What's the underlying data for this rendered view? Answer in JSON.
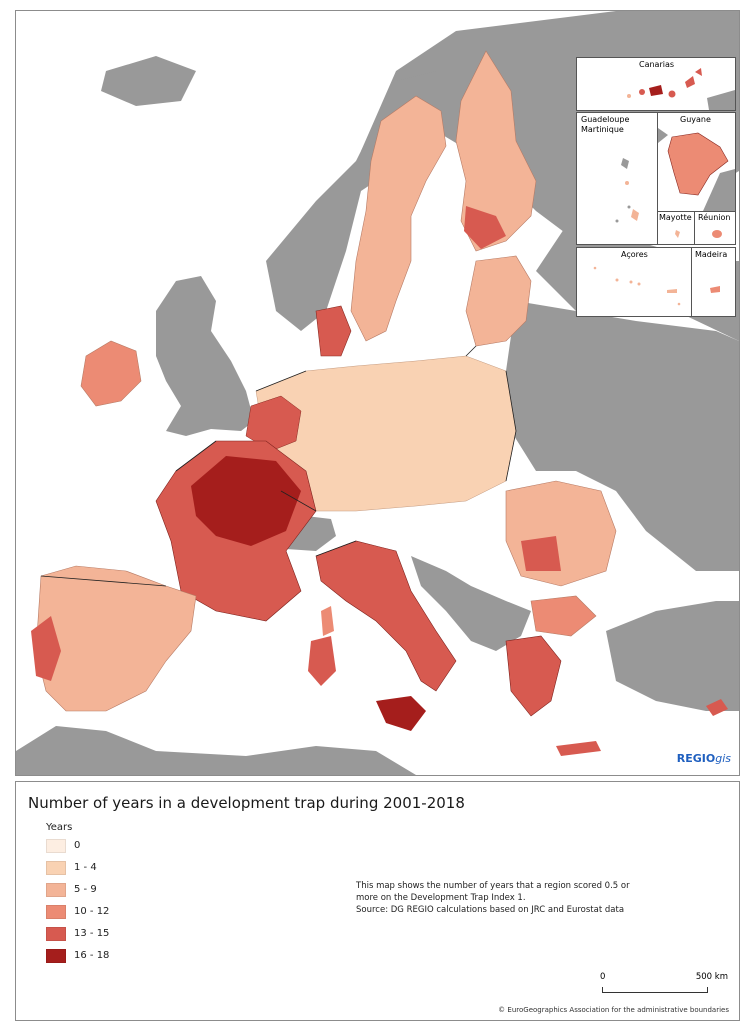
{
  "map": {
    "inset_labels": {
      "canarias": "Canarias",
      "guadeloupe": "Guadeloupe",
      "martinique": "Martinique",
      "guyane": "Guyane",
      "mayotte": "Mayotte",
      "reunion": "Réunion",
      "acores": "Açores",
      "madeira": "Madeira"
    },
    "logo_main": "REGIO",
    "logo_italic": "gis",
    "colors": {
      "sea": "#ffffff",
      "non_eu_land": "#999999",
      "borders": "#333333"
    }
  },
  "legend": {
    "title": "Number of years in a development trap during 2001-2018",
    "heading": "Years",
    "classes": [
      {
        "label": "0",
        "color": "#fdeee2"
      },
      {
        "label": "1 - 4",
        "color": "#f9d2b3"
      },
      {
        "label": "5 - 9",
        "color": "#f3b497"
      },
      {
        "label": "10 - 12",
        "color": "#ec8b74"
      },
      {
        "label": "13 - 15",
        "color": "#d75a50"
      },
      {
        "label": "16 - 18",
        "color": "#a51e1c"
      }
    ],
    "note_lines": [
      "This map shows the number of years that a region scored 0.5 or",
      "more on the Development Trap Index 1.",
      "Source: DG REGIO calculations based on JRC and Eurostat data"
    ],
    "scale_start": "0",
    "scale_end": "500 km",
    "copyright": "© EuroGeographics Association for the administrative boundaries"
  }
}
